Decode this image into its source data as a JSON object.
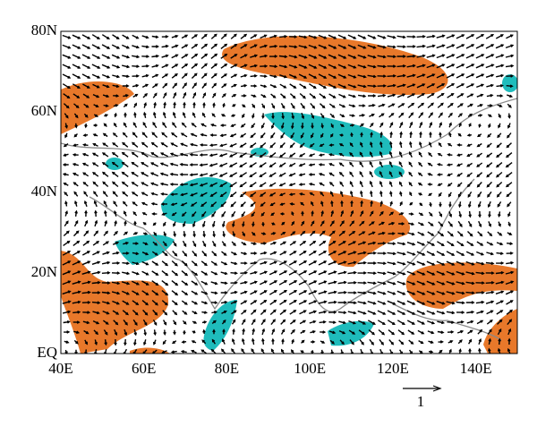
{
  "map": {
    "x_axis_labels": [
      "40E",
      "60E",
      "80E",
      "100E",
      "120E",
      "140E"
    ],
    "y_axis_labels": [
      "80N",
      "60N",
      "40N",
      "20N",
      "EQ"
    ],
    "reference_vector_label": "1"
  }
}
